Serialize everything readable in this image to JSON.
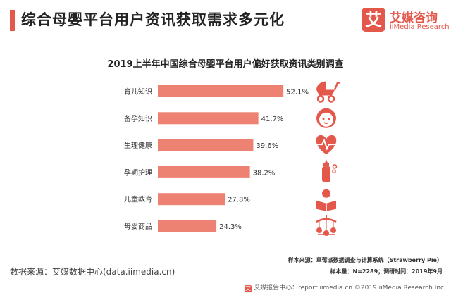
{
  "header": {
    "title": "综合母婴平台用户资讯获取需求多元化",
    "logo_cn": "艾媒咨询",
    "logo_en": "iiMedia Research",
    "logo_mark": "艾"
  },
  "chart_data": {
    "type": "bar",
    "orientation": "horizontal",
    "title": "2019上半年中国综合母婴平台用户偏好获取资讯类别调查",
    "categories": [
      "育儿知识",
      "备孕知识",
      "生理健康",
      "孕期护理",
      "儿童教育",
      "母婴商品"
    ],
    "values": [
      52.1,
      41.7,
      39.6,
      38.2,
      27.8,
      24.3
    ],
    "value_labels": [
      "52.1%",
      "41.7%",
      "39.6%",
      "38.2%",
      "27.8%",
      "24.3%"
    ],
    "unit": "%",
    "xlim": [
      0,
      60
    ],
    "grid": false,
    "bar_color": "#ee8272",
    "icon_color": "#e4574b",
    "icons": [
      "stroller-icon",
      "baby-face-icon",
      "heartbeat-icon",
      "baby-bottle-icon",
      "child-reading-icon",
      "baby-mobile-icon"
    ]
  },
  "notes": {
    "sample_source": "样本来源：草莓派数据调查与计算系统（Strawberry Pie）",
    "sample_size": "样本量：N=2289；调研时间：2019年9月"
  },
  "source": "数据来源：艾媒数据中心(data.iimedia.cn)",
  "footer": {
    "mark": "艾",
    "text": "艾媒报告中心：report.iimedia.cn  ©2019  iiMedia Research Inc"
  }
}
